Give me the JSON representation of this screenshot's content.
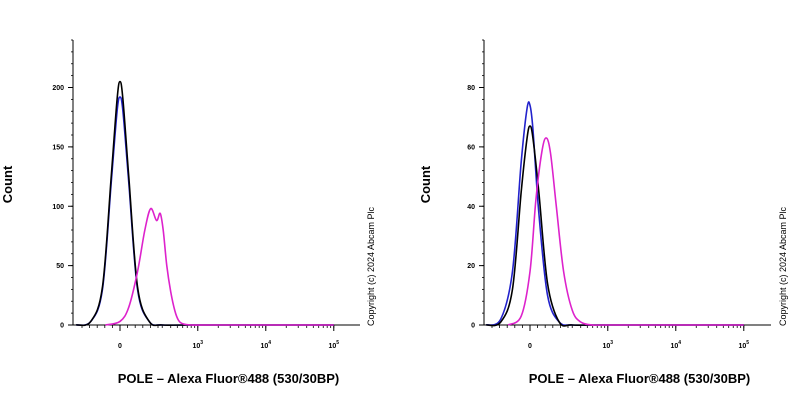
{
  "chart_data": [
    {
      "type": "line",
      "xlabel": "POLE – Alexa Fluor®488 (530/30BP)",
      "ylabel": "Count",
      "copyright": "Copyright (c) 2024 Abcam Plc",
      "ylim": [
        0,
        240
      ],
      "y_ticks": [
        0,
        50,
        100,
        150,
        200
      ],
      "x_scale": "biexponential",
      "x_ticks": [
        {
          "value": 0,
          "base": "0",
          "exp": ""
        },
        {
          "value": 1000,
          "base": "10",
          "exp": "3"
        },
        {
          "value": 10000,
          "base": "10",
          "exp": "4"
        },
        {
          "value": 100000,
          "base": "10",
          "exp": "5"
        }
      ],
      "series": [
        {
          "color": "#2222cc",
          "x": [
            -300,
            -200,
            -120,
            -60,
            -20,
            0,
            20,
            60,
            120,
            200,
            300,
            800,
            100000
          ],
          "y": [
            0,
            3,
            30,
            120,
            180,
            192,
            180,
            120,
            30,
            3,
            0,
            0,
            0
          ]
        },
        {
          "color": "#000000",
          "x": [
            -300,
            -200,
            -120,
            -60,
            -20,
            0,
            20,
            60,
            120,
            200,
            300,
            800,
            100000
          ],
          "y": [
            0,
            3,
            32,
            125,
            190,
            205,
            190,
            125,
            32,
            3,
            0,
            0,
            0
          ]
        },
        {
          "color": "#dd22cc",
          "x": [
            -100,
            0,
            60,
            120,
            170,
            210,
            250,
            280,
            310,
            350,
            400,
            460,
            520,
            600,
            800,
            1500,
            100000
          ],
          "y": [
            0,
            3,
            15,
            45,
            80,
            98,
            88,
            94,
            80,
            50,
            28,
            12,
            4,
            1,
            0,
            0,
            0
          ]
        }
      ]
    },
    {
      "type": "line",
      "xlabel": "POLE – Alexa Fluor®488 (530/30BP)",
      "ylabel": "Count",
      "copyright": "Copyright (c) 2024 Abcam Plc",
      "ylim": [
        0,
        96
      ],
      "y_ticks": [
        0,
        20,
        40,
        60,
        80
      ],
      "x_scale": "biexponential",
      "x_ticks": [
        {
          "value": 0,
          "base": "0",
          "exp": ""
        },
        {
          "value": 1000,
          "base": "10",
          "exp": "3"
        },
        {
          "value": 10000,
          "base": "10",
          "exp": "4"
        },
        {
          "value": 100000,
          "base": "10",
          "exp": "5"
        }
      ],
      "series": [
        {
          "color": "#2222cc",
          "x": [
            -300,
            -200,
            -120,
            -60,
            -20,
            0,
            20,
            60,
            120,
            200,
            300,
            800,
            100000
          ],
          "y": [
            0,
            2,
            18,
            55,
            73,
            74,
            66,
            38,
            10,
            1,
            0,
            0,
            0
          ]
        },
        {
          "color": "#000000",
          "x": [
            -300,
            -200,
            -120,
            -60,
            -20,
            0,
            20,
            60,
            120,
            200,
            300,
            800,
            100000
          ],
          "y": [
            0,
            1,
            12,
            45,
            63,
            67,
            63,
            45,
            14,
            1,
            0,
            0,
            0
          ]
        },
        {
          "color": "#dd22cc",
          "x": [
            -150,
            -60,
            0,
            40,
            80,
            110,
            140,
            180,
            230,
            300,
            400,
            600,
            1000,
            100000
          ],
          "y": [
            0,
            3,
            18,
            42,
            58,
            63,
            58,
            40,
            18,
            5,
            1,
            0,
            0,
            0
          ]
        }
      ]
    }
  ]
}
